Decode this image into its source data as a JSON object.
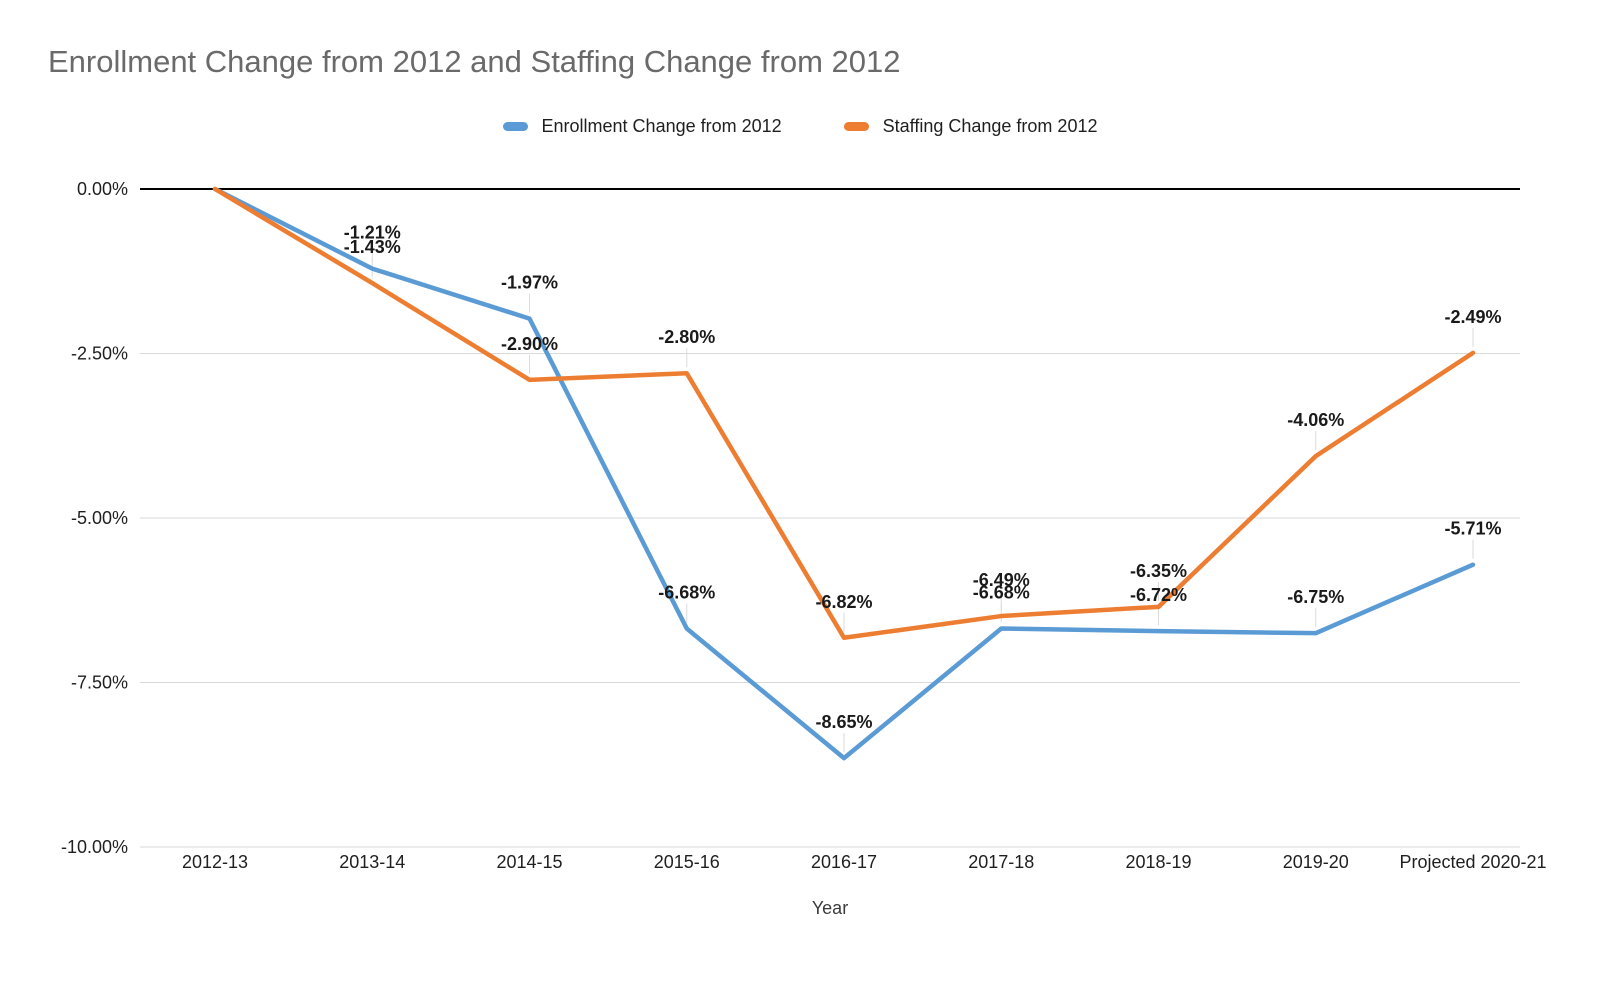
{
  "chart_data": {
    "type": "line",
    "title": "Enrollment Change from 2012 and Staffing Change from 2012",
    "xlabel": "Year",
    "ylabel": "",
    "categories": [
      "2012-13",
      "2013-14",
      "2014-15",
      "2015-16",
      "2016-17",
      "2017-18",
      "2018-19",
      "2019-20",
      "Projected 2020-21"
    ],
    "series": [
      {
        "name": "Enrollment Change from 2012",
        "color": "#5B9BD5",
        "values": [
          0,
          -1.21,
          -1.97,
          -6.68,
          -8.65,
          -6.68,
          -6.72,
          -6.75,
          -5.71
        ],
        "labels": [
          "",
          "-1.21%",
          "-1.97%",
          "-6.68%",
          "-8.65%",
          "-6.68%",
          "-6.72%",
          "-6.75%",
          "-5.71%"
        ]
      },
      {
        "name": "Staffing Change from 2012",
        "color": "#ED7D31",
        "values": [
          0,
          -1.43,
          -2.9,
          -2.8,
          -6.82,
          -6.49,
          -6.35,
          -4.06,
          -2.49
        ],
        "labels": [
          "",
          "-1.43%",
          "-2.90%",
          "-2.80%",
          "-6.82%",
          "-6.49%",
          "-6.35%",
          "-4.06%",
          "-2.49%"
        ]
      }
    ],
    "y_ticks": [
      {
        "label": "0.00%",
        "value": 0
      },
      {
        "label": "-2.50%",
        "value": -2.5
      },
      {
        "label": "-5.00%",
        "value": -5
      },
      {
        "label": "-7.50%",
        "value": -7.5
      },
      {
        "label": "-10.00%",
        "value": -10
      }
    ],
    "ylim": [
      -10,
      0
    ],
    "grid": true,
    "legend_position": "top",
    "colors": {
      "zero_axis": "#000000",
      "gridline": "#D9D9D9",
      "leader_line": "#DADADA",
      "data_label": "#1a1a1a",
      "tick_label": "#1f1f1f",
      "title": "#6a6a6a"
    }
  }
}
